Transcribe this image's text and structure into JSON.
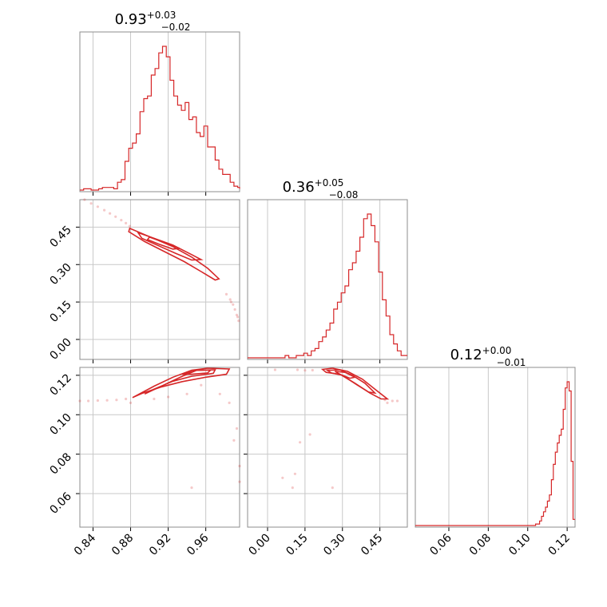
{
  "chart_data": {
    "type": "corner",
    "color": "#d62728",
    "grid": true,
    "parameters": [
      {
        "value": "0.93",
        "plus": "+0.03",
        "minus": "−0.02",
        "range": [
          0.826,
          0.996
        ]
      },
      {
        "value": "0.36",
        "plus": "+0.05",
        "minus": "−0.08",
        "range": [
          -0.08,
          0.56
        ]
      },
      {
        "value": "0.12",
        "plus": "+0.00",
        "minus": "−0.01",
        "range": [
          0.043,
          0.124
        ]
      }
    ],
    "ticks": [
      {
        "values": [
          0.84,
          0.88,
          0.92,
          0.96
        ],
        "labels": [
          "0.84",
          "0.88",
          "0.92",
          "0.96"
        ]
      },
      {
        "values": [
          0.0,
          0.15,
          0.3,
          0.45
        ],
        "labels": [
          "0.00",
          "0.15",
          "0.30",
          "0.45"
        ]
      },
      {
        "values": [
          0.06,
          0.08,
          0.1,
          0.12
        ],
        "labels": [
          "0.06",
          "0.08",
          "0.10",
          "0.12"
        ]
      }
    ],
    "histograms": [
      {
        "parameter": 0,
        "bin_edges": [
          0.826,
          0.83,
          0.834,
          0.838,
          0.842,
          0.846,
          0.85,
          0.854,
          0.858,
          0.862,
          0.866,
          0.87,
          0.874,
          0.878,
          0.882,
          0.886,
          0.89,
          0.894,
          0.898,
          0.902,
          0.906,
          0.91,
          0.914,
          0.918,
          0.922,
          0.926,
          0.93,
          0.934,
          0.938,
          0.942,
          0.946,
          0.95,
          0.954,
          0.958,
          0.962,
          0.966,
          0.97,
          0.974,
          0.978,
          0.982,
          0.986,
          0.99,
          0.994,
          0.996
        ],
        "counts": [
          0,
          1,
          1,
          0,
          0,
          1,
          2,
          2,
          2,
          1,
          6,
          8,
          22,
          32,
          36,
          43,
          60,
          70,
          72,
          88,
          93,
          105,
          110,
          102,
          84,
          72,
          65,
          61,
          67,
          54,
          56,
          44,
          41,
          49,
          33,
          33,
          23,
          16,
          12,
          12,
          6,
          3,
          2,
          1
        ]
      },
      {
        "parameter": 1,
        "bin_edges": [
          -0.08,
          -0.065,
          -0.05,
          -0.035,
          -0.02,
          -0.005,
          0.01,
          0.025,
          0.04,
          0.055,
          0.07,
          0.085,
          0.1,
          0.115,
          0.13,
          0.145,
          0.16,
          0.175,
          0.19,
          0.205,
          0.22,
          0.235,
          0.25,
          0.265,
          0.28,
          0.295,
          0.31,
          0.325,
          0.34,
          0.355,
          0.37,
          0.385,
          0.4,
          0.415,
          0.43,
          0.445,
          0.46,
          0.475,
          0.49,
          0.505,
          0.52,
          0.535,
          0.55,
          0.56
        ],
        "counts": [
          0,
          0,
          0,
          0,
          0,
          0,
          0,
          0,
          0,
          0,
          1,
          0,
          0,
          1,
          1,
          2,
          1,
          3,
          4,
          7,
          9,
          12,
          15,
          21,
          24,
          28,
          31,
          38,
          41,
          46,
          52,
          60,
          62,
          57,
          50,
          37,
          25,
          18,
          10,
          6,
          3,
          1,
          1
        ]
      },
      {
        "parameter": 2,
        "bin_edges": [
          0.043,
          0.046,
          0.049,
          0.052,
          0.055,
          0.058,
          0.061,
          0.064,
          0.067,
          0.07,
          0.073,
          0.076,
          0.079,
          0.082,
          0.085,
          0.088,
          0.091,
          0.094,
          0.097,
          0.1,
          0.103,
          0.104,
          0.105,
          0.106,
          0.107,
          0.108,
          0.109,
          0.11,
          0.111,
          0.112,
          0.113,
          0.114,
          0.115,
          0.116,
          0.117,
          0.118,
          0.119,
          0.12,
          0.121,
          0.122,
          0.123,
          0.124
        ],
        "counts": [
          0,
          0,
          0,
          0,
          0,
          0,
          0,
          0,
          0,
          0,
          0,
          0,
          0,
          0,
          0,
          0,
          0,
          0,
          0,
          0,
          0,
          1,
          1,
          3,
          6,
          9,
          12,
          16,
          20,
          30,
          40,
          48,
          54,
          59,
          63,
          76,
          90,
          94,
          88,
          42,
          4
        ]
      }
    ],
    "contours": [
      {
        "x_param": 0,
        "y_param": 1,
        "levels": [
          [
            [
              0.879,
              0.445
            ],
            [
              0.9,
              0.412
            ],
            [
              0.925,
              0.372
            ],
            [
              0.945,
              0.33
            ],
            [
              0.962,
              0.285
            ],
            [
              0.974,
              0.243
            ],
            [
              0.97,
              0.238
            ],
            [
              0.955,
              0.272
            ],
            [
              0.937,
              0.312
            ],
            [
              0.917,
              0.35
            ],
            [
              0.895,
              0.392
            ],
            [
              0.878,
              0.432
            ]
          ],
          [
            [
              0.888,
              0.428
            ],
            [
              0.905,
              0.405
            ],
            [
              0.925,
              0.378
            ],
            [
              0.945,
              0.34
            ],
            [
              0.955,
              0.32
            ],
            [
              0.945,
              0.318
            ],
            [
              0.928,
              0.345
            ],
            [
              0.91,
              0.375
            ],
            [
              0.892,
              0.405
            ]
          ],
          [
            [
              0.9,
              0.41
            ],
            [
              0.915,
              0.39
            ],
            [
              0.932,
              0.365
            ],
            [
              0.925,
              0.362
            ],
            [
              0.91,
              0.382
            ],
            [
              0.898,
              0.4
            ]
          ]
        ],
        "points": [
          [
            0.831,
            0.56
          ],
          [
            0.838,
            0.545
          ],
          [
            0.845,
            0.532
          ],
          [
            0.852,
            0.518
          ],
          [
            0.858,
            0.505
          ],
          [
            0.864,
            0.492
          ],
          [
            0.87,
            0.478
          ],
          [
            0.875,
            0.466
          ],
          [
            0.879,
            0.454
          ],
          [
            0.982,
            0.181
          ],
          [
            0.986,
            0.16
          ],
          [
            0.989,
            0.14
          ],
          [
            0.991,
            0.12
          ],
          [
            0.993,
            0.098
          ],
          [
            0.995,
            0.075
          ],
          [
            0.994,
            0.09
          ],
          [
            0.987,
            0.15
          ]
        ]
      },
      {
        "x_param": 0,
        "y_param": 2,
        "levels": [
          [
            [
              0.882,
              0.1087
            ],
            [
              0.905,
              0.1145
            ],
            [
              0.925,
              0.119
            ],
            [
              0.945,
              0.1226
            ],
            [
              0.962,
              0.1236
            ],
            [
              0.985,
              0.1232
            ],
            [
              0.982,
              0.1205
            ],
            [
              0.96,
              0.119
            ],
            [
              0.935,
              0.1168
            ],
            [
              0.912,
              0.114
            ],
            [
              0.892,
              0.1108
            ]
          ],
          [
            [
              0.895,
              0.1105
            ],
            [
              0.915,
              0.115
            ],
            [
              0.935,
              0.1195
            ],
            [
              0.95,
              0.1225
            ],
            [
              0.97,
              0.1228
            ],
            [
              0.968,
              0.121
            ],
            [
              0.945,
              0.1195
            ],
            [
              0.925,
              0.117
            ],
            [
              0.905,
              0.113
            ]
          ],
          [
            [
              0.935,
              0.1205
            ],
            [
              0.95,
              0.1226
            ],
            [
              0.965,
              0.1226
            ],
            [
              0.962,
              0.1212
            ],
            [
              0.945,
              0.1205
            ]
          ]
        ],
        "points": [
          [
            0.826,
            0.107
          ],
          [
            0.835,
            0.107
          ],
          [
            0.845,
            0.1072
          ],
          [
            0.855,
            0.1073
          ],
          [
            0.865,
            0.1075
          ],
          [
            0.875,
            0.108
          ],
          [
            0.88,
            0.106
          ],
          [
            0.905,
            0.108
          ],
          [
            0.92,
            0.109
          ],
          [
            0.94,
            0.1105
          ],
          [
            0.955,
            0.115
          ],
          [
            0.975,
            0.1105
          ],
          [
            0.985,
            0.106
          ],
          [
            0.945,
            0.063
          ],
          [
            0.99,
            0.087
          ],
          [
            0.993,
            0.093
          ],
          [
            0.996,
            0.074
          ],
          [
            0.996,
            0.066
          ]
        ]
      },
      {
        "x_param": 1,
        "y_param": 2,
        "levels": [
          [
            [
              0.22,
              0.123
            ],
            [
              0.26,
              0.1236
            ],
            [
              0.32,
              0.122
            ],
            [
              0.38,
              0.118
            ],
            [
              0.43,
              0.113
            ],
            [
              0.48,
              0.108
            ],
            [
              0.455,
              0.108
            ],
            [
              0.41,
              0.111
            ],
            [
              0.35,
              0.116
            ],
            [
              0.29,
              0.1205
            ],
            [
              0.235,
              0.1215
            ]
          ],
          [
            [
              0.24,
              0.1225
            ],
            [
              0.29,
              0.1228
            ],
            [
              0.34,
              0.12
            ],
            [
              0.39,
              0.116
            ],
            [
              0.43,
              0.111
            ],
            [
              0.405,
              0.1115
            ],
            [
              0.36,
              0.115
            ],
            [
              0.3,
              0.12
            ],
            [
              0.255,
              0.1212
            ]
          ],
          [
            [
              0.27,
              0.122
            ],
            [
              0.31,
              0.1215
            ],
            [
              0.35,
              0.119
            ],
            [
              0.33,
              0.1185
            ],
            [
              0.29,
              0.1205
            ]
          ]
        ],
        "points": [
          [
            0.03,
            0.1228
          ],
          [
            0.12,
            0.1228
          ],
          [
            0.15,
            0.1225
          ],
          [
            0.18,
            0.1226
          ],
          [
            0.47,
            0.1075
          ],
          [
            0.5,
            0.107
          ],
          [
            0.52,
            0.107
          ],
          [
            0.48,
            0.106
          ],
          [
            0.17,
            0.09
          ],
          [
            0.13,
            0.086
          ],
          [
            0.06,
            0.068
          ],
          [
            0.1,
            0.063
          ],
          [
            0.26,
            0.063
          ],
          [
            0.11,
            0.07
          ]
        ]
      }
    ]
  }
}
